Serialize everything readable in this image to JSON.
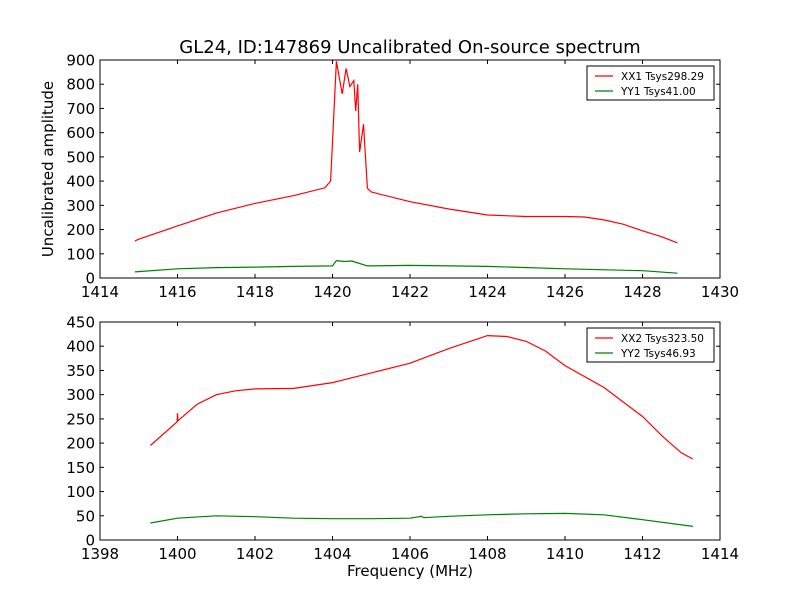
{
  "title": "GL24, ID:147869 Uncalibrated On-source spectrum",
  "chart_data": [
    {
      "type": "line",
      "ylabel": "Uncalibrated amplitude",
      "xlabel": "",
      "xlim": [
        1414,
        1430
      ],
      "ylim": [
        0,
        900
      ],
      "xticks": [
        1414,
        1416,
        1418,
        1420,
        1422,
        1424,
        1426,
        1428,
        1430
      ],
      "yticks": [
        0,
        100,
        200,
        300,
        400,
        500,
        600,
        700,
        800,
        900
      ],
      "legend_position": "top-right",
      "series": [
        {
          "name": "XX1 Tsys298.29",
          "color": "#ff0000",
          "x": [
            1414.9,
            1415,
            1416,
            1417,
            1418,
            1419,
            1419.8,
            1419.95,
            1420.1,
            1420.25,
            1420.35,
            1420.45,
            1420.55,
            1420.6,
            1420.65,
            1420.7,
            1420.8,
            1420.9,
            1421,
            1422,
            1423,
            1424,
            1425,
            1426,
            1426.5,
            1427,
            1427.5,
            1428,
            1428.5,
            1428.9
          ],
          "y": [
            153,
            160,
            215,
            268,
            308,
            340,
            372,
            400,
            895,
            760,
            865,
            790,
            815,
            690,
            800,
            520,
            635,
            370,
            355,
            315,
            285,
            260,
            254,
            254,
            252,
            240,
            222,
            195,
            170,
            145
          ]
        },
        {
          "name": "YY1 Tsys41.00",
          "color": "#008000",
          "x": [
            1414.9,
            1416,
            1417,
            1418,
            1419,
            1420,
            1420.1,
            1420.3,
            1420.5,
            1420.7,
            1420.9,
            1422,
            1424,
            1426,
            1428,
            1428.9
          ],
          "y": [
            25,
            38,
            43,
            45,
            48,
            50,
            72,
            68,
            70,
            60,
            50,
            52,
            48,
            38,
            30,
            20
          ]
        }
      ]
    },
    {
      "type": "line",
      "ylabel": "",
      "xlabel": "Frequency (MHz)",
      "xlim": [
        1398,
        1414
      ],
      "ylim": [
        0,
        450
      ],
      "xticks": [
        1398,
        1400,
        1402,
        1404,
        1406,
        1408,
        1410,
        1412,
        1414
      ],
      "yticks": [
        0,
        50,
        100,
        150,
        200,
        250,
        300,
        350,
        400,
        450
      ],
      "legend_position": "top-right",
      "series": [
        {
          "name": "XX2 Tsys323.50",
          "color": "#ff0000",
          "x": [
            1399.3,
            1399.99,
            1400,
            1400.01,
            1400.5,
            1401,
            1401.5,
            1402,
            1403,
            1404,
            1405,
            1406,
            1407,
            1408,
            1408.5,
            1409,
            1409.5,
            1410,
            1411,
            1412,
            1412.5,
            1413,
            1413.3
          ],
          "y": [
            195,
            244,
            262,
            246,
            280,
            300,
            308,
            312,
            313,
            325,
            345,
            365,
            395,
            422,
            420,
            410,
            390,
            360,
            315,
            255,
            215,
            180,
            167
          ]
        },
        {
          "name": "YY2 Tsys46.93",
          "color": "#008000",
          "x": [
            1399.3,
            1400,
            1401,
            1402,
            1403,
            1404,
            1405,
            1406,
            1406.3,
            1406.35,
            1407,
            1408,
            1409,
            1410,
            1411,
            1412,
            1413.3
          ],
          "y": [
            35,
            45,
            50,
            48,
            45,
            44,
            44,
            45,
            49,
            46,
            49,
            52,
            54,
            55,
            52,
            42,
            28
          ]
        }
      ]
    }
  ]
}
